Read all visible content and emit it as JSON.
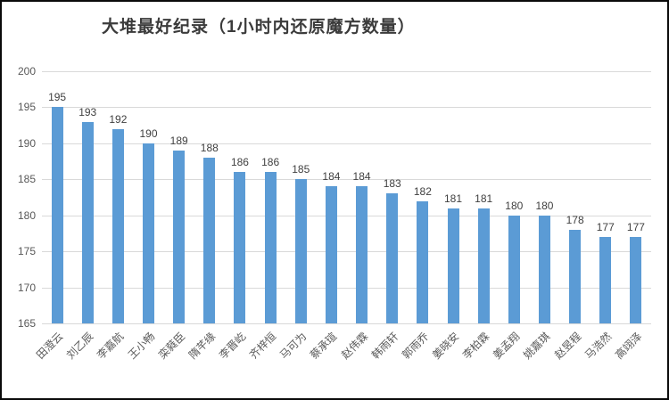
{
  "chart_data": {
    "type": "bar",
    "title": "大堆最好纪录（1小时内还原魔方数量）",
    "categories": [
      "田澄云",
      "刘乙辰",
      "李嘉航",
      "王小畅",
      "栾蕤臣",
      "隋芊缘",
      "李晋屹",
      "齐梓恒",
      "马可为",
      "蔡承瑄",
      "赵伟霖",
      "韩雨轩",
      "郭雨乔",
      "姜晓安",
      "李柏霖",
      "姜孟翔",
      "姚嘉琪",
      "赵昱程",
      "马浩然",
      "高翊泽"
    ],
    "values": [
      195,
      193,
      192,
      190,
      189,
      188,
      186,
      186,
      185,
      184,
      184,
      183,
      182,
      181,
      181,
      180,
      180,
      178,
      177,
      177
    ],
    "xlabel": "",
    "ylabel": "",
    "ylim": [
      165,
      200
    ],
    "yticks": [
      165,
      170,
      175,
      180,
      185,
      190,
      195,
      200
    ],
    "grid": true,
    "legend": "none",
    "data_labels": true,
    "bar_color": "#5b9bd5",
    "gridline_color": "#d9d9d9",
    "tick_label_color": "#595959",
    "data_label_color": "#404040",
    "title_color": "#3b3b3b"
  }
}
